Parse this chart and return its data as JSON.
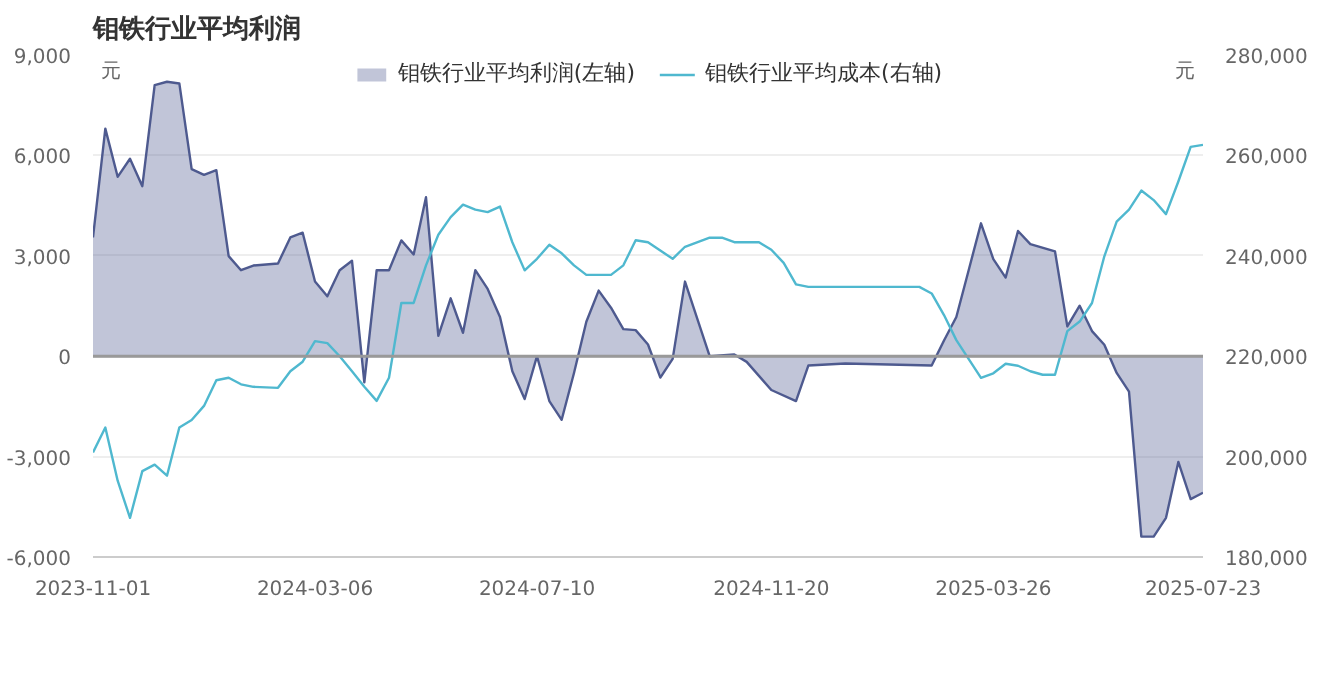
{
  "chart_data": {
    "type": "area",
    "title": "钼铁行业平均利润",
    "ylabel": "元",
    "y2label": "元",
    "series": [
      {
        "name": "钼铁行业平均利润(左轴)",
        "color": "#4e5a8f",
        "x": [
          "2023-11-01",
          "2023-11-08",
          "2023-11-15",
          "2023-11-22",
          "2023-11-29",
          "2023-12-06",
          "2023-12-13",
          "2023-12-20",
          "2023-12-27",
          "2024-01-03",
          "2024-01-10",
          "2024-01-17",
          "2024-01-24",
          "2024-01-31",
          "2024-02-14",
          "2024-02-21",
          "2024-02-28",
          "2024-03-06",
          "2024-03-13",
          "2024-03-20",
          "2024-03-27",
          "2024-04-03",
          "2024-04-10",
          "2024-04-17",
          "2024-04-24",
          "2024-05-01",
          "2024-05-08",
          "2024-05-15",
          "2024-05-22",
          "2024-05-29",
          "2024-06-05",
          "2024-06-12",
          "2024-06-19",
          "2024-06-26",
          "2024-07-03",
          "2024-07-10",
          "2024-07-17",
          "2024-07-24",
          "2024-07-31",
          "2024-08-07",
          "2024-08-14",
          "2024-08-21",
          "2024-08-28",
          "2024-09-04",
          "2024-09-11",
          "2024-09-18",
          "2024-09-25",
          "2024-10-02",
          "2024-10-16",
          "2024-10-30",
          "2024-11-06",
          "2024-11-20",
          "2024-12-04",
          "2024-12-11",
          "2025-01-01",
          "2025-02-19",
          "2025-02-26",
          "2025-03-05",
          "2025-03-12",
          "2025-03-19",
          "2025-03-26",
          "2025-04-02",
          "2025-04-09",
          "2025-04-16",
          "2025-04-30",
          "2025-05-07",
          "2025-05-14",
          "2025-05-21",
          "2025-05-28",
          "2025-06-04",
          "2025-06-11",
          "2025-06-18",
          "2025-06-25",
          "2025-07-02",
          "2025-07-09",
          "2025-07-16",
          "2025-07-23"
        ],
        "values": [
          3550,
          6800,
          5360,
          5900,
          5080,
          8100,
          8200,
          8150,
          5590,
          5420,
          5560,
          2990,
          2570,
          2710,
          2770,
          3550,
          3690,
          2230,
          1790,
          2570,
          2850,
          -780,
          2570,
          2570,
          3460,
          3040,
          4750,
          610,
          1730,
          700,
          2570,
          2010,
          1170,
          -450,
          -1280,
          0,
          -1340,
          -1900,
          -500,
          1030,
          1960,
          1450,
          810,
          780,
          350,
          -640,
          -80,
          2230,
          0,
          50,
          -170,
          -1010,
          -1340,
          -280,
          -220,
          -280,
          470,
          1170,
          2570,
          3970,
          2900,
          2350,
          3740,
          3350,
          3130,
          890,
          1510,
          750,
          340,
          -500,
          -1060,
          -5390,
          -5390,
          -4830,
          -3160,
          -4270,
          -4080
        ]
      },
      {
        "name": "钼铁行业平均成本(右轴)",
        "type": "line",
        "axis": "y2",
        "color": "#4fb8cf",
        "x": [
          "2023-11-01",
          "2023-11-08",
          "2023-11-15",
          "2023-11-22",
          "2023-11-29",
          "2023-12-06",
          "2023-12-13",
          "2023-12-20",
          "2023-12-27",
          "2024-01-03",
          "2024-01-10",
          "2024-01-17",
          "2024-01-24",
          "2024-01-31",
          "2024-02-14",
          "2024-02-21",
          "2024-02-28",
          "2024-03-06",
          "2024-03-13",
          "2024-03-20",
          "2024-03-27",
          "2024-04-03",
          "2024-04-10",
          "2024-04-17",
          "2024-04-24",
          "2024-05-01",
          "2024-05-08",
          "2024-05-15",
          "2024-05-22",
          "2024-05-29",
          "2024-06-05",
          "2024-06-12",
          "2024-06-19",
          "2024-06-26",
          "2024-07-03",
          "2024-07-10",
          "2024-07-17",
          "2024-07-24",
          "2024-07-31",
          "2024-08-07",
          "2024-08-14",
          "2024-08-21",
          "2024-08-28",
          "2024-09-04",
          "2024-09-11",
          "2024-09-25",
          "2024-10-02",
          "2024-10-16",
          "2024-10-23",
          "2024-10-30",
          "2024-11-13",
          "2024-11-20",
          "2024-11-27",
          "2024-12-04",
          "2024-12-11",
          "2025-01-01",
          "2025-02-12",
          "2025-02-19",
          "2025-02-26",
          "2025-03-05",
          "2025-03-19",
          "2025-03-26",
          "2025-04-02",
          "2025-04-09",
          "2025-04-16",
          "2025-04-23",
          "2025-04-30",
          "2025-05-07",
          "2025-05-14",
          "2025-05-21",
          "2025-05-28",
          "2025-06-04",
          "2025-06-11",
          "2025-06-18",
          "2025-06-25",
          "2025-07-02",
          "2025-07-09",
          "2025-07-16",
          "2025-07-23"
        ],
        "values": [
          200800,
          205800,
          195200,
          187800,
          197100,
          198400,
          196200,
          205800,
          207300,
          210100,
          215200,
          215700,
          214400,
          213900,
          213700,
          217000,
          218900,
          223000,
          222600,
          220000,
          217000,
          213900,
          211100,
          215700,
          230600,
          230600,
          238100,
          244200,
          247700,
          250200,
          249200,
          248700,
          249800,
          242700,
          237100,
          239400,
          242200,
          240500,
          238100,
          236200,
          236200,
          236200,
          238100,
          243100,
          242700,
          239400,
          241800,
          243600,
          243600,
          242700,
          242700,
          241200,
          238600,
          234300,
          233800,
          233800,
          233800,
          232500,
          228200,
          223200,
          215700,
          216600,
          218500,
          218100,
          217000,
          216300,
          216300,
          225000,
          226900,
          230600,
          239900,
          246800,
          249200,
          253000,
          251100,
          248300,
          254800,
          261700,
          262100
        ]
      }
    ],
    "xlim": [
      "2023-11-01",
      "2025-07-23"
    ],
    "xticks": [
      "2023-11-01",
      "2024-03-06",
      "2024-07-10",
      "2024-11-20",
      "2025-03-26",
      "2025-07-23"
    ],
    "ylim": [
      -6000,
      9000
    ],
    "yticks": [
      {
        "value": -6000,
        "label": "-6,000"
      },
      {
        "value": -3000,
        "label": "-3,000"
      },
      0,
      {
        "value": 3000,
        "label": "3,000"
      },
      {
        "value": 6000,
        "label": "6,000"
      },
      {
        "value": 9000,
        "label": "9,000"
      }
    ],
    "y2lim": [
      180000,
      280000
    ],
    "y2ticks": [
      {
        "value": 180000,
        "label": "180,000"
      },
      {
        "value": 200000,
        "label": "200,000"
      },
      {
        "value": 220000,
        "label": "220,000"
      },
      {
        "value": 240000,
        "label": "240,000"
      },
      {
        "value": 260000,
        "label": "260,000"
      },
      {
        "value": 280000,
        "label": "280,000"
      }
    ],
    "ref_lines": [
      {
        "axis": "y",
        "value": 0,
        "color": "#999999"
      }
    ],
    "grid": "y",
    "legend": "top"
  }
}
